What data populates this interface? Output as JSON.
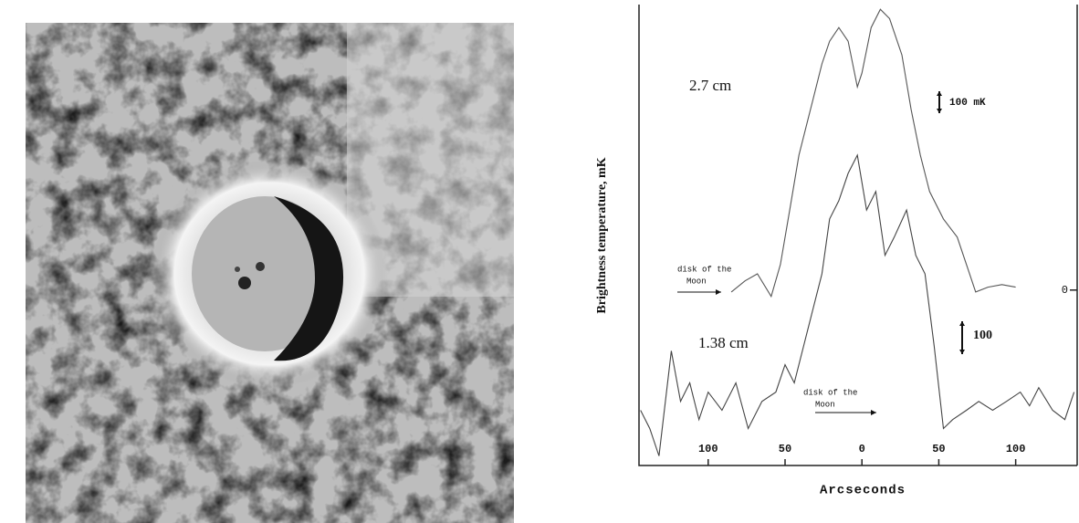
{
  "chart_data": {
    "type": "line",
    "y_label": "Brightness temperature, mK",
    "x_label": "Arcseconds",
    "xlim": [
      -145,
      140
    ],
    "xticks": [
      {
        "value": -100,
        "label": "100"
      },
      {
        "value": -50,
        "label": "50"
      },
      0,
      50,
      100
    ],
    "ylim": [
      -550,
      895
    ],
    "yticks": [
      0
    ],
    "series": [
      {
        "name": "2.7 cm",
        "color": "#555555",
        "x": [
          -85,
          -76,
          -68,
          -59,
          -53,
          -47,
          -41,
          -32,
          -26,
          -21,
          -15,
          -9,
          -3,
          0,
          6,
          12,
          18,
          26,
          32,
          38,
          44,
          53,
          62,
          68,
          74,
          82,
          91,
          100
        ],
        "values": [
          -6,
          29,
          51,
          -20,
          80,
          251,
          423,
          594,
          709,
          780,
          823,
          780,
          637,
          680,
          823,
          880,
          851,
          737,
          566,
          423,
          309,
          223,
          166,
          80,
          -6,
          9,
          17,
          9
        ]
      },
      {
        "name": "1.38 cm",
        "color": "#444444",
        "x": [
          -144,
          -138,
          -132,
          -124,
          -118,
          -112,
          -106,
          -100,
          -91,
          -82,
          -74,
          -65,
          -56,
          -50,
          -44,
          -38,
          -32,
          -26,
          -21,
          -15,
          -9,
          -3,
          3,
          9,
          15,
          21,
          29,
          35,
          41,
          47,
          53,
          59,
          68,
          76,
          85,
          94,
          103,
          109,
          115,
          124,
          132,
          138
        ],
        "values": [
          -377,
          -434,
          -520,
          -191,
          -349,
          -291,
          -406,
          -320,
          -377,
          -291,
          -434,
          -349,
          -320,
          -234,
          -291,
          -177,
          -63,
          51,
          223,
          280,
          366,
          423,
          251,
          309,
          109,
          166,
          251,
          109,
          51,
          -177,
          -434,
          -406,
          -377,
          -349,
          -377,
          -349,
          -320,
          -363,
          -306,
          -377,
          -406,
          -320
        ]
      }
    ],
    "annotations": [
      {
        "text": "100 mK"
      },
      {
        "text": "100"
      },
      {
        "lines": [
          "disk of the",
          "Moon"
        ]
      },
      {
        "lines": [
          "disk of the",
          "Moon"
        ]
      }
    ]
  }
}
